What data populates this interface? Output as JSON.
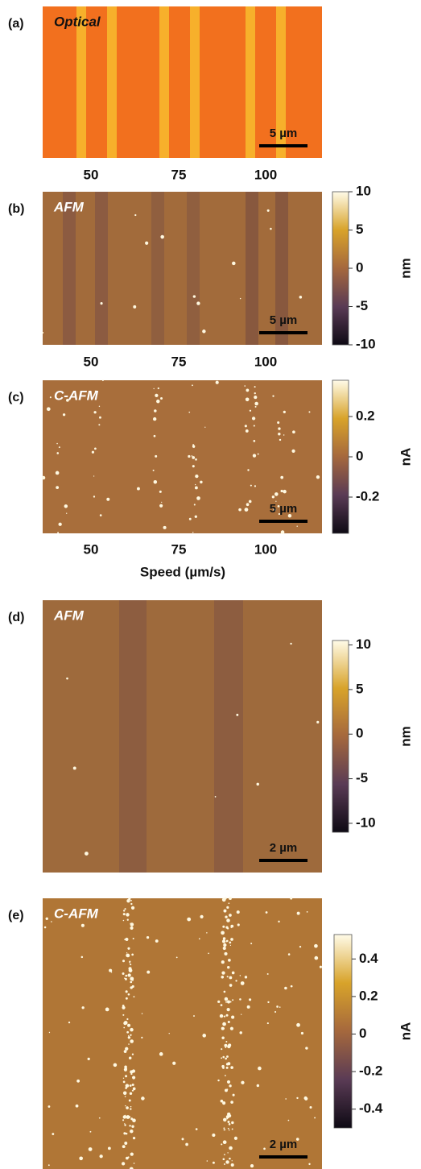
{
  "panels": [
    {
      "label": "(a)",
      "title": "Optical",
      "scale_bar": "5 µm",
      "x_ticks": [
        "50",
        "75",
        "100"
      ]
    },
    {
      "label": "(b)",
      "title": "AFM",
      "scale_bar": "5 µm",
      "x_ticks": [
        "50",
        "75",
        "100"
      ],
      "colorbar": {
        "unit": "nm",
        "lim": [
          -10,
          10
        ],
        "ticks": [
          10,
          5,
          0,
          -5,
          -10
        ]
      }
    },
    {
      "label": "(c)",
      "title": "C-AFM",
      "scale_bar": "5 µm",
      "x_ticks": [
        "50",
        "75",
        "100"
      ],
      "colorbar": {
        "unit": "nA",
        "lim": [
          -0.38,
          0.38
        ],
        "ticks": [
          0.2,
          0,
          -0.2
        ]
      }
    },
    {
      "label": "(d)",
      "title": "AFM",
      "scale_bar": "2 µm",
      "colorbar": {
        "unit": "nm",
        "lim": [
          -11,
          10.5
        ],
        "ticks": [
          10,
          5,
          0,
          -5,
          -10
        ]
      }
    },
    {
      "label": "(e)",
      "title": "C-AFM",
      "scale_bar": "2 µm",
      "colorbar": {
        "unit": "nA",
        "lim": [
          -0.5,
          0.53
        ],
        "ticks": [
          0.4,
          0.2,
          0,
          -0.2,
          -0.4
        ]
      }
    }
  ],
  "x_axis_label": "Speed (µm/s)"
}
